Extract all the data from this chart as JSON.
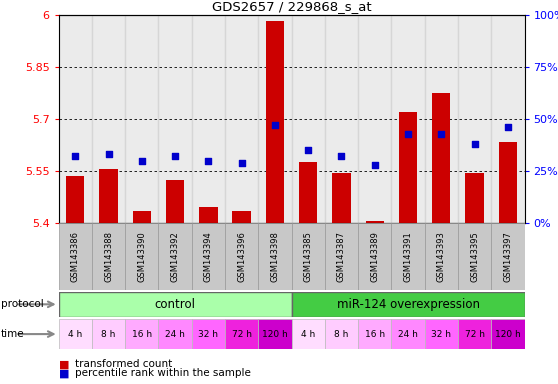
{
  "title": "GDS2657 / 229868_s_at",
  "samples": [
    "GSM143386",
    "GSM143388",
    "GSM143390",
    "GSM143392",
    "GSM143394",
    "GSM143396",
    "GSM143398",
    "GSM143385",
    "GSM143387",
    "GSM143389",
    "GSM143391",
    "GSM143393",
    "GSM143395",
    "GSM143397"
  ],
  "bar_values": [
    5.535,
    5.555,
    5.435,
    5.525,
    5.445,
    5.435,
    5.985,
    5.575,
    5.545,
    5.405,
    5.72,
    5.775,
    5.545,
    5.635
  ],
  "dot_values": [
    32,
    33,
    30,
    32,
    30,
    29,
    47,
    35,
    32,
    28,
    43,
    43,
    38,
    46
  ],
  "ylim_left": [
    5.4,
    6.0
  ],
  "ylim_right": [
    0,
    100
  ],
  "yticks_left": [
    5.4,
    5.55,
    5.7,
    5.85,
    6.0
  ],
  "ytick_labels_left": [
    "5.4",
    "5.55",
    "5.7",
    "5.85",
    "6"
  ],
  "yticks_right": [
    0,
    25,
    50,
    75,
    100
  ],
  "ytick_labels_right": [
    "0%",
    "25%",
    "50%",
    "75%",
    "100%"
  ],
  "bar_color": "#cc0000",
  "dot_color": "#0000cc",
  "bar_width": 0.55,
  "protocol_control_color": "#aaffaa",
  "protocol_overexp_color": "#44cc44",
  "time_labels": [
    "4 h",
    "8 h",
    "16 h",
    "24 h",
    "32 h",
    "72 h",
    "120 h",
    "4 h",
    "8 h",
    "16 h",
    "24 h",
    "32 h",
    "72 h",
    "120 h"
  ],
  "unique_times": [
    "4 h",
    "8 h",
    "16 h",
    "24 h",
    "32 h",
    "72 h",
    "120 h"
  ],
  "time_palette": [
    "#ffddff",
    "#ffccff",
    "#ffaaff",
    "#ff88ff",
    "#ff66ff",
    "#ee22dd",
    "#cc00cc"
  ],
  "legend_bar_label": "transformed count",
  "legend_dot_label": "percentile rank within the sample",
  "grid_yticks": [
    5.55,
    5.7,
    5.85
  ],
  "background_color": "#ffffff",
  "sample_bg_color": "#c8c8c8"
}
